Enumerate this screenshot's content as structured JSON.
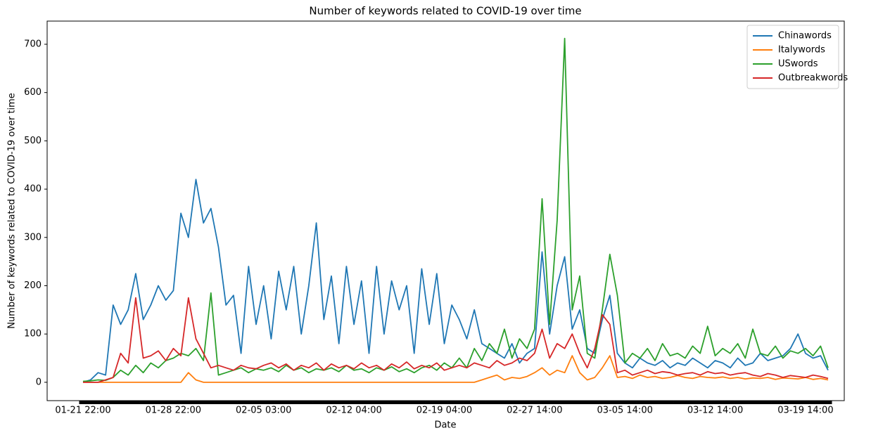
{
  "chart_data": {
    "type": "line",
    "title": "Number of keywords related to COVID-19 over time",
    "xlabel": "Date",
    "ylabel": "Number of keywords related to COVID-19 over time",
    "categories": [
      "01-21 22:00",
      null,
      null,
      null,
      null,
      null,
      null,
      null,
      null,
      null,
      null,
      null,
      "01-28 22:00",
      null,
      null,
      null,
      null,
      null,
      null,
      null,
      null,
      null,
      null,
      null,
      "02-05 03:00",
      null,
      null,
      null,
      null,
      null,
      null,
      null,
      null,
      null,
      null,
      null,
      "02-12 04:00",
      null,
      null,
      null,
      null,
      null,
      null,
      null,
      null,
      null,
      null,
      null,
      "02-19 04:00",
      null,
      null,
      null,
      null,
      null,
      null,
      null,
      null,
      null,
      null,
      null,
      "02-27 14:00",
      null,
      null,
      null,
      null,
      null,
      null,
      null,
      null,
      null,
      null,
      null,
      "03-05 14:00",
      null,
      null,
      null,
      null,
      null,
      null,
      null,
      null,
      null,
      null,
      null,
      "03-12 14:00",
      null,
      null,
      null,
      null,
      null,
      null,
      null,
      null,
      null,
      null,
      null,
      "03-19 14:00",
      null,
      null,
      null
    ],
    "series": [
      {
        "name": "Chinawords",
        "color": "#1f77b4",
        "values": [
          0,
          5,
          20,
          15,
          160,
          120,
          150,
          225,
          130,
          160,
          200,
          170,
          190,
          350,
          300,
          420,
          330,
          360,
          280,
          160,
          180,
          60,
          240,
          120,
          200,
          90,
          230,
          150,
          240,
          100,
          200,
          330,
          130,
          220,
          80,
          240,
          120,
          210,
          60,
          240,
          100,
          210,
          150,
          200,
          60,
          235,
          120,
          225,
          80,
          160,
          130,
          90,
          150,
          80,
          70,
          60,
          50,
          80,
          40,
          60,
          70,
          270,
          100,
          200,
          260,
          110,
          150,
          70,
          60,
          130,
          180,
          60,
          40,
          30,
          50,
          40,
          35,
          45,
          30,
          40,
          35,
          50,
          40,
          30,
          45,
          40,
          30,
          50,
          35,
          40,
          60,
          45,
          50,
          55,
          70,
          100,
          60,
          50,
          55,
          25
        ]
      },
      {
        "name": "Italywords",
        "color": "#ff7f0e",
        "values": [
          0,
          0,
          0,
          0,
          0,
          0,
          0,
          0,
          0,
          0,
          0,
          0,
          0,
          0,
          20,
          5,
          0,
          0,
          0,
          0,
          0,
          0,
          0,
          0,
          0,
          0,
          0,
          0,
          0,
          0,
          0,
          0,
          0,
          0,
          0,
          0,
          0,
          0,
          0,
          0,
          0,
          0,
          0,
          0,
          0,
          0,
          0,
          0,
          0,
          0,
          0,
          0,
          0,
          5,
          10,
          15,
          5,
          10,
          8,
          12,
          20,
          30,
          15,
          25,
          20,
          55,
          20,
          5,
          10,
          30,
          55,
          10,
          12,
          8,
          15,
          10,
          12,
          8,
          10,
          14,
          10,
          8,
          12,
          10,
          9,
          11,
          8,
          10,
          7,
          9,
          8,
          10,
          6,
          9,
          8,
          7,
          10,
          6,
          8,
          5
        ]
      },
      {
        "name": "USwords",
        "color": "#2ca02c",
        "values": [
          2,
          3,
          5,
          4,
          10,
          25,
          15,
          35,
          20,
          40,
          30,
          45,
          50,
          60,
          55,
          70,
          45,
          185,
          15,
          20,
          25,
          30,
          20,
          28,
          25,
          30,
          22,
          35,
          25,
          30,
          20,
          28,
          25,
          30,
          22,
          35,
          25,
          28,
          20,
          30,
          25,
          32,
          22,
          28,
          20,
          30,
          35,
          25,
          40,
          30,
          50,
          30,
          70,
          45,
          80,
          60,
          110,
          50,
          90,
          70,
          110,
          380,
          120,
          335,
          712,
          150,
          220,
          60,
          50,
          150,
          265,
          180,
          40,
          60,
          50,
          70,
          45,
          80,
          55,
          60,
          50,
          75,
          60,
          116,
          55,
          70,
          60,
          80,
          50,
          110,
          60,
          55,
          75,
          50,
          65,
          60,
          70,
          55,
          75,
          30
        ]
      },
      {
        "name": "Outbreakwords",
        "color": "#d62728",
        "values": [
          0,
          0,
          0,
          5,
          10,
          60,
          40,
          175,
          50,
          55,
          65,
          45,
          70,
          55,
          175,
          90,
          60,
          30,
          35,
          30,
          25,
          35,
          30,
          28,
          35,
          40,
          30,
          38,
          25,
          35,
          30,
          40,
          25,
          38,
          30,
          35,
          28,
          40,
          30,
          35,
          25,
          38,
          30,
          42,
          28,
          35,
          30,
          40,
          25,
          30,
          35,
          30,
          40,
          35,
          30,
          45,
          35,
          40,
          50,
          45,
          60,
          110,
          50,
          80,
          70,
          100,
          60,
          30,
          70,
          140,
          120,
          20,
          25,
          15,
          20,
          25,
          18,
          22,
          20,
          15,
          18,
          20,
          15,
          22,
          18,
          20,
          15,
          18,
          20,
          15,
          12,
          18,
          15,
          10,
          14,
          12,
          10,
          15,
          12,
          8
        ]
      }
    ],
    "ylim": [
      -38,
      748
    ],
    "yticks": [
      0,
      100,
      200,
      300,
      400,
      500,
      600,
      700
    ],
    "legend": "upper right"
  }
}
